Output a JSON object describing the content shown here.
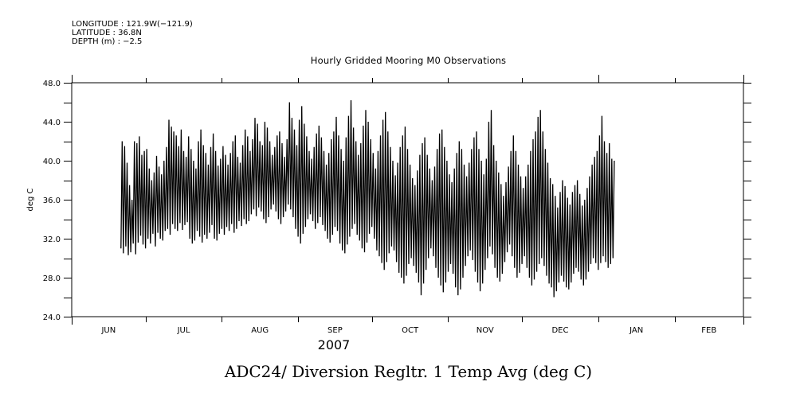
{
  "header": {
    "longitude": "LONGITUDE : 121.9W(−121.9)",
    "latitude": "LATITUDE : 36.8N",
    "depth": "DEPTH (m) : −2.5"
  },
  "chart_data": {
    "type": "line",
    "title": "Hourly Gridded Mooring M0 Observations",
    "caption": "ADC24/ Diversion Regltr. 1 Temp Avg (deg C)",
    "xlabel": "2007",
    "ylabel": "deg C",
    "ylim": [
      24.0,
      48.0
    ],
    "yticks": [
      24.0,
      28.0,
      32.0,
      36.0,
      40.0,
      44.0,
      48.0
    ],
    "ytick_labels": [
      "24.0",
      "28.0",
      "32.0",
      "36.0",
      "40.0",
      "44.0",
      "48.0"
    ],
    "y_minor_step": 2.0,
    "x_axis": {
      "start": "2007-06-01",
      "end": "2008-02-29",
      "month_ticks": [
        "2007-06-01",
        "2007-07-01",
        "2007-08-01",
        "2007-09-01",
        "2007-10-01",
        "2007-11-01",
        "2007-12-01",
        "2008-01-01",
        "2008-02-01",
        "2008-02-29"
      ],
      "month_labels": [
        "JUN",
        "JUL",
        "AUG",
        "SEP",
        "OCT",
        "NOV",
        "DEC",
        "JAN",
        "FEB"
      ],
      "year_label": "2007"
    },
    "grid": false,
    "series": [
      {
        "name": "Diversion Regltr. 1 Temp Avg",
        "color": "#000000",
        "start_date": "2007-06-21",
        "interval": "daily cycle (min/max per day)",
        "daily_min": [
          31.0,
          30.5,
          31.2,
          30.3,
          30.6,
          31.5,
          30.4,
          31.6,
          32.3,
          31.4,
          31.0,
          32.0,
          31.5,
          32.5,
          31.2,
          32.6,
          32.0,
          31.8,
          32.8,
          33.0,
          32.4,
          33.5,
          33.0,
          32.8,
          33.6,
          32.9,
          33.4,
          33.7,
          32.0,
          31.5,
          31.8,
          32.8,
          32.2,
          31.6,
          32.4,
          32.0,
          32.6,
          33.4,
          32.0,
          31.8,
          32.5,
          33.0,
          32.4,
          33.2,
          32.8,
          33.5,
          32.6,
          33.0,
          33.8,
          33.3,
          34.0,
          33.5,
          33.8,
          34.5,
          35.0,
          34.3,
          35.2,
          34.8,
          34.0,
          33.6,
          34.2,
          35.0,
          35.5,
          34.8,
          34.0,
          33.5,
          34.2,
          34.8,
          35.5,
          35.0,
          34.2,
          33.0,
          32.2,
          31.5,
          32.5,
          33.2,
          34.0,
          34.5,
          33.8,
          33.0,
          33.6,
          34.2,
          33.4,
          32.8,
          32.0,
          31.6,
          32.4,
          33.2,
          32.8,
          31.5,
          30.8,
          30.5,
          31.4,
          32.2,
          33.0,
          33.5,
          32.4,
          31.8,
          31.0,
          30.6,
          31.6,
          32.5,
          33.2,
          32.0,
          30.8,
          30.2,
          29.5,
          28.8,
          29.6,
          30.5,
          31.2,
          30.8,
          29.6,
          28.5,
          28.0,
          27.4,
          28.2,
          29.4,
          30.0,
          29.2,
          28.5,
          27.5,
          26.2,
          27.4,
          28.8,
          30.0,
          31.0,
          30.2,
          29.0,
          28.0,
          27.2,
          26.5,
          27.5,
          28.6,
          29.4,
          28.4,
          27.0,
          26.2,
          26.8,
          28.0,
          29.2,
          30.2,
          30.8,
          29.8,
          28.6,
          27.5,
          26.6,
          27.4,
          28.8,
          30.0,
          31.2,
          30.4,
          29.0,
          28.0,
          27.6,
          28.4,
          29.6,
          30.6,
          31.4,
          30.2,
          29.0,
          28.0,
          28.5,
          29.4,
          30.2,
          29.0,
          28.0,
          27.2,
          27.8,
          28.6,
          29.4,
          30.0,
          29.2,
          28.2,
          27.4,
          27.0,
          26.0,
          26.6,
          27.5,
          28.2,
          27.6,
          27.0,
          26.8,
          27.5,
          28.4,
          29.0,
          28.6,
          27.8,
          27.2,
          27.8,
          28.6,
          29.4,
          30.0,
          29.5,
          28.8,
          29.5,
          30.2,
          29.6,
          29.0,
          29.4,
          30.0,
          29.5
        ],
        "daily_max": [
          42.0,
          41.5,
          39.8,
          37.5,
          36.0,
          42.0,
          41.8,
          42.5,
          40.6,
          41.0,
          41.2,
          39.2,
          38.0,
          38.8,
          40.5,
          39.4,
          38.6,
          40.0,
          41.4,
          44.2,
          43.5,
          43.0,
          42.6,
          41.5,
          43.2,
          41.0,
          40.4,
          42.5,
          41.2,
          40.0,
          39.2,
          42.0,
          43.2,
          41.6,
          40.8,
          39.6,
          41.4,
          42.8,
          41.0,
          39.5,
          40.2,
          41.5,
          40.6,
          39.6,
          40.8,
          42.0,
          42.6,
          40.4,
          39.8,
          41.6,
          43.2,
          42.5,
          41.0,
          42.2,
          44.4,
          43.8,
          42.0,
          41.6,
          44.0,
          43.4,
          42.0,
          40.6,
          41.4,
          42.6,
          43.0,
          41.8,
          40.4,
          42.2,
          46.0,
          44.4,
          43.2,
          41.6,
          44.2,
          45.6,
          43.8,
          42.5,
          41.0,
          40.2,
          41.4,
          42.8,
          43.6,
          42.4,
          41.0,
          39.6,
          40.8,
          42.2,
          43.0,
          44.5,
          42.6,
          41.2,
          40.0,
          42.4,
          44.6,
          46.2,
          43.4,
          42.0,
          40.6,
          41.8,
          43.6,
          45.2,
          44.0,
          42.2,
          40.8,
          39.2,
          41.0,
          42.6,
          44.2,
          45.0,
          43.0,
          41.4,
          40.0,
          38.5,
          39.8,
          41.4,
          42.6,
          43.5,
          41.2,
          39.6,
          38.2,
          37.5,
          39.0,
          40.6,
          41.8,
          42.4,
          40.6,
          39.2,
          38.0,
          39.4,
          41.2,
          42.8,
          43.2,
          41.4,
          40.0,
          38.6,
          37.8,
          39.2,
          40.8,
          42.0,
          41.2,
          39.6,
          38.4,
          39.8,
          41.2,
          42.4,
          43.0,
          41.2,
          40.0,
          38.6,
          40.2,
          44.0,
          45.2,
          41.6,
          40.0,
          38.8,
          37.6,
          36.4,
          37.8,
          39.4,
          41.0,
          42.6,
          41.0,
          39.6,
          38.4,
          37.2,
          38.4,
          39.6,
          41.0,
          42.2,
          43.0,
          44.5,
          45.2,
          43.0,
          41.2,
          39.8,
          38.2,
          37.6,
          36.4,
          35.2,
          36.8,
          38.0,
          37.4,
          36.2,
          35.5,
          36.8,
          37.5,
          38.0,
          36.6,
          35.4,
          36.0,
          37.2,
          38.4,
          39.6,
          40.4,
          41.0,
          42.6,
          44.6,
          42.0,
          40.8,
          41.8,
          40.2,
          40.0
        ]
      }
    ]
  }
}
